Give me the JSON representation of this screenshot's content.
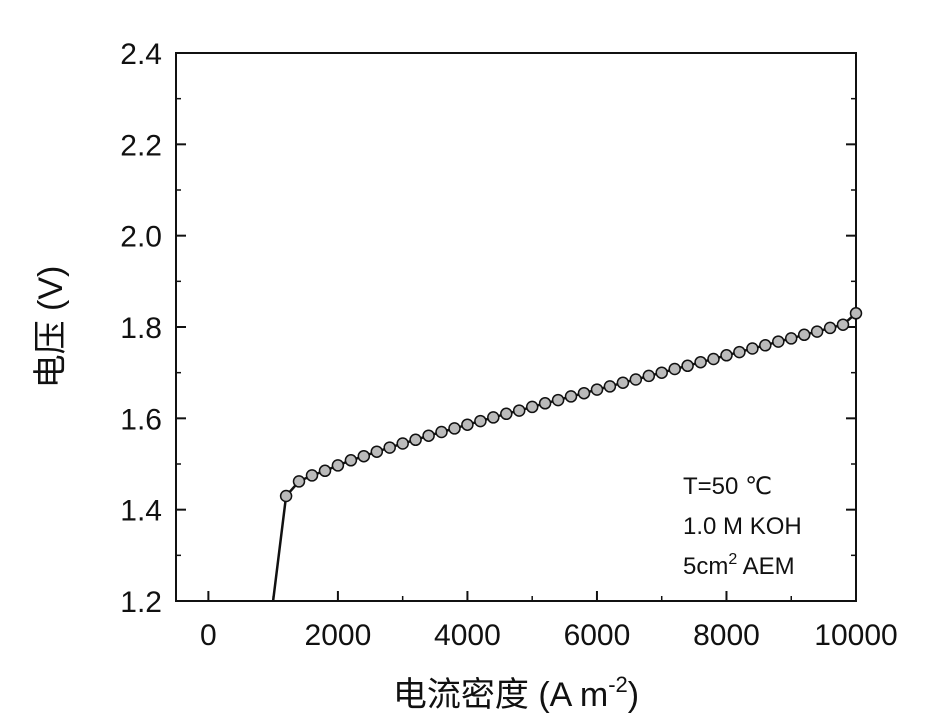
{
  "chart_data": {
    "type": "scatter",
    "xlabel": "电流密度 (A m",
    "xlabel_sup": "-2",
    "xlabel_close": ")",
    "ylabel": "电压 (V)",
    "xlim": [
      -500,
      10000
    ],
    "ylim": [
      1.2,
      2.4
    ],
    "x_ticks": [
      0,
      2000,
      4000,
      6000,
      8000,
      10000
    ],
    "x_tick_labels": [
      "0",
      "2000",
      "4000",
      "6000",
      "8000",
      "10000"
    ],
    "y_ticks": [
      1.2,
      1.4,
      1.6,
      1.8,
      2.0,
      2.2,
      2.4
    ],
    "y_tick_labels": [
      "1.2",
      "1.4",
      "1.6",
      "1.8",
      "2.0",
      "2.2",
      "2.4"
    ],
    "grid": false,
    "line_color": "#111111",
    "marker_color": "#bbbbbb",
    "annotations": [
      {
        "text": "T=50 ℃"
      },
      {
        "text": "1.0 M KOH"
      },
      {
        "text": "5cm",
        "sup": "2",
        "text_after": " AEM"
      }
    ],
    "series": [
      {
        "x": [
          1000,
          1200,
          1400,
          1600,
          1800,
          2000,
          2200,
          2400,
          2600,
          2800,
          3000,
          3200,
          3400,
          3600,
          3800,
          4000,
          4200,
          4400,
          4600,
          4800,
          5000,
          5200,
          5400,
          5600,
          5800,
          6000,
          6200,
          6400,
          6600,
          6800,
          7000,
          7200,
          7400,
          7600,
          7800,
          8000,
          8200,
          8400,
          8600,
          8800,
          9000,
          9200,
          9400,
          9600,
          9800,
          10000
        ],
        "y": [
          1.2,
          1.43,
          1.462,
          1.475,
          1.485,
          1.497,
          1.508,
          1.517,
          1.527,
          1.536,
          1.545,
          1.553,
          1.562,
          1.57,
          1.578,
          1.586,
          1.594,
          1.602,
          1.61,
          1.617,
          1.625,
          1.633,
          1.64,
          1.648,
          1.655,
          1.663,
          1.67,
          1.678,
          1.685,
          1.693,
          1.7,
          1.708,
          1.715,
          1.723,
          1.73,
          1.738,
          1.745,
          1.753,
          1.76,
          1.768,
          1.775,
          1.783,
          1.79,
          1.798,
          1.805,
          1.83
        ]
      }
    ]
  }
}
